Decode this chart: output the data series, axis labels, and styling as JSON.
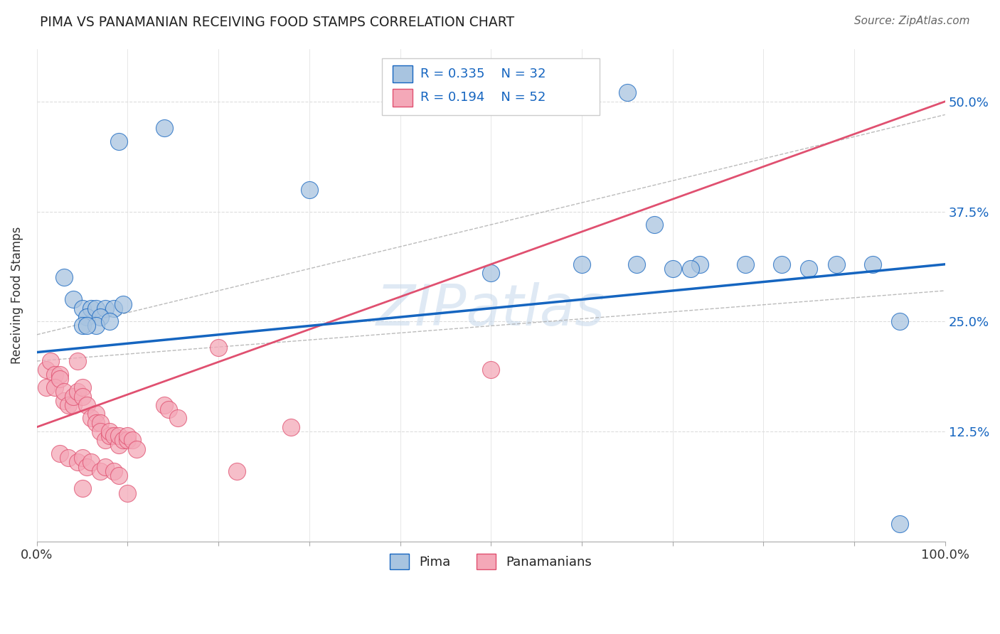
{
  "title": "PIMA VS PANAMANIAN RECEIVING FOOD STAMPS CORRELATION CHART",
  "source_text": "Source: ZipAtlas.com",
  "ylabel": "Receiving Food Stamps",
  "ytick_labels": [
    "12.5%",
    "25.0%",
    "37.5%",
    "50.0%"
  ],
  "ytick_values": [
    0.125,
    0.25,
    0.375,
    0.5
  ],
  "xlim": [
    0.0,
    1.0
  ],
  "ylim": [
    0.0,
    0.56
  ],
  "pima_R": "0.335",
  "pima_N": "32",
  "pana_R": "0.194",
  "pana_N": "52",
  "pima_color": "#a8c4e0",
  "pana_color": "#f4a8b8",
  "pima_line_color": "#1565c0",
  "pana_line_color": "#e05070",
  "legend_label_pima": "Pima",
  "legend_label_pana": "Panamanians",
  "watermark": "ZIPatlas",
  "title_color": "#222222",
  "pima_scatter_x": [
    0.09,
    0.14,
    0.03,
    0.04,
    0.05,
    0.06,
    0.055,
    0.065,
    0.075,
    0.085,
    0.095,
    0.05,
    0.07,
    0.065,
    0.08,
    0.055,
    0.5,
    0.65,
    0.68,
    0.7,
    0.73,
    0.78,
    0.82,
    0.85,
    0.88,
    0.92,
    0.95,
    0.6,
    0.66,
    0.72,
    0.3,
    0.95
  ],
  "pima_scatter_y": [
    0.455,
    0.47,
    0.3,
    0.275,
    0.265,
    0.265,
    0.255,
    0.265,
    0.265,
    0.265,
    0.27,
    0.245,
    0.255,
    0.245,
    0.25,
    0.245,
    0.305,
    0.51,
    0.36,
    0.31,
    0.315,
    0.315,
    0.315,
    0.31,
    0.315,
    0.315,
    0.25,
    0.315,
    0.315,
    0.31,
    0.4,
    0.02
  ],
  "pana_scatter_x": [
    0.01,
    0.015,
    0.02,
    0.025,
    0.01,
    0.02,
    0.025,
    0.03,
    0.03,
    0.035,
    0.04,
    0.04,
    0.045,
    0.05,
    0.05,
    0.055,
    0.06,
    0.065,
    0.065,
    0.07,
    0.07,
    0.075,
    0.08,
    0.08,
    0.085,
    0.09,
    0.09,
    0.095,
    0.1,
    0.1,
    0.105,
    0.11,
    0.025,
    0.035,
    0.045,
    0.05,
    0.055,
    0.06,
    0.07,
    0.075,
    0.085,
    0.09,
    0.045,
    0.14,
    0.145,
    0.155,
    0.2,
    0.28,
    0.5,
    0.05,
    0.1,
    0.22
  ],
  "pana_scatter_y": [
    0.195,
    0.205,
    0.19,
    0.19,
    0.175,
    0.175,
    0.185,
    0.16,
    0.17,
    0.155,
    0.155,
    0.165,
    0.17,
    0.175,
    0.165,
    0.155,
    0.14,
    0.145,
    0.135,
    0.135,
    0.125,
    0.115,
    0.12,
    0.125,
    0.12,
    0.11,
    0.12,
    0.115,
    0.115,
    0.12,
    0.115,
    0.105,
    0.1,
    0.095,
    0.09,
    0.095,
    0.085,
    0.09,
    0.08,
    0.085,
    0.08,
    0.075,
    0.205,
    0.155,
    0.15,
    0.14,
    0.22,
    0.13,
    0.195,
    0.06,
    0.055,
    0.08
  ],
  "bg_color": "#ffffff",
  "grid_color": "#dddddd",
  "conf_band_color": "#aaaaaa"
}
